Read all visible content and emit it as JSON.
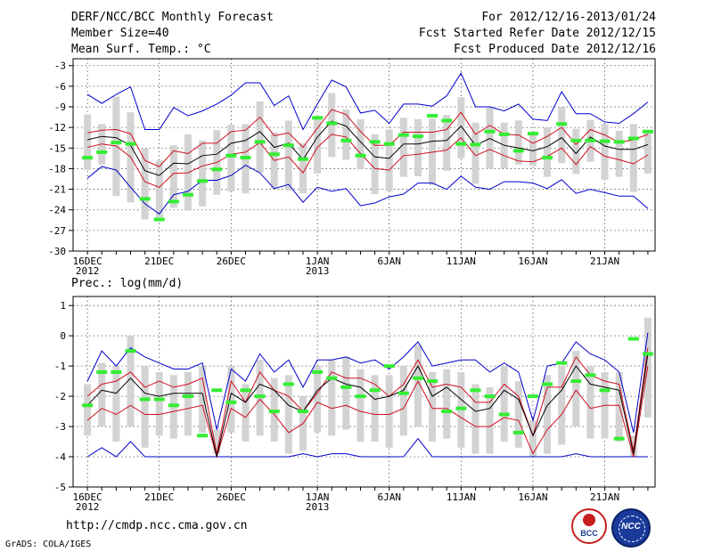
{
  "header": {
    "title": "DERF/NCC/BCC Monthly Forecast",
    "member_size": "Member Size=40",
    "variable": "Mean Surf. Temp.: °C",
    "period": "For 2012/12/16-2013/01/24",
    "fcst_started": "Fcst Started Refer Date 2012/12/15",
    "fcst_produced": "Fcst Produced Date 2012/12/16"
  },
  "footer": {
    "url": "http://cmdp.ncc.cma.gov.cn",
    "credit": "GrADS: COLA/IGES",
    "logo_left_text": "BCC",
    "logo_right_text": "NCC"
  },
  "colors": {
    "ensemble_bar": "#d3d3d3",
    "mean_line": "#000000",
    "std_line": "#d01020",
    "envelope_line": "#0000cc",
    "obs_marker": "#33ee33"
  },
  "chart_data": [
    {
      "type": "line",
      "title": "Mean Surf. Temp.: °C",
      "ylabel": "°C",
      "ylim": [
        -30,
        -2
      ],
      "yticks": [
        -3,
        -6,
        -9,
        -12,
        -15,
        -18,
        -21,
        -24,
        -27,
        -30
      ],
      "x_tick_labels": [
        "16DEC\n2012",
        "21DEC",
        "26DEC",
        "1JAN\n2013",
        "6JAN",
        "11JAN",
        "16JAN",
        "21JAN"
      ],
      "x_tick_days": [
        1,
        6,
        11,
        17,
        22,
        27,
        32,
        37
      ],
      "x_minor_count": 40,
      "grid": true,
      "series": [
        {
          "name": "ensemble max",
          "color": "#0000cc",
          "values": [
            -7.2,
            -8.5,
            -7.2,
            -6.1,
            -12.3,
            -12.3,
            -9.1,
            -10.3,
            -9.6,
            -8.6,
            -7.3,
            -5.5,
            -5.5,
            -8.8,
            -7.4,
            -12.3,
            -8.6,
            -5.1,
            -6.1,
            -9.9,
            -9.5,
            -11.4,
            -8.6,
            -8.6,
            -8.9,
            -7.4,
            -4.1,
            -9.0,
            -9.0,
            -9.6,
            -8.6,
            -10.8,
            -11.0,
            -6.8,
            -10.0,
            -10.0,
            -11.2,
            -11.4,
            -10.0,
            -8.3
          ]
        },
        {
          "name": "mean + std",
          "color": "#d01020",
          "values": [
            -12.8,
            -12.4,
            -12.3,
            -12.9,
            -16.8,
            -17.7,
            -15.4,
            -15.8,
            -14.3,
            -14.3,
            -12.6,
            -12.4,
            -10.5,
            -13.2,
            -12.8,
            -14.9,
            -12.1,
            -9.4,
            -10.1,
            -12.6,
            -14.6,
            -14.6,
            -12.7,
            -12.7,
            -12.7,
            -12.3,
            -9.8,
            -13.0,
            -11.7,
            -13.0,
            -13.1,
            -14.3,
            -13.3,
            -12.0,
            -14.5,
            -12.3,
            -13.1,
            -14.2,
            -13.8,
            -13.0,
            -12.0
          ]
        },
        {
          "name": "ensemble mean",
          "color": "#000000",
          "values": [
            -13.8,
            -13.3,
            -13.5,
            -14.6,
            -18.3,
            -19.0,
            -17.2,
            -17.3,
            -16.1,
            -15.9,
            -14.3,
            -13.9,
            -12.6,
            -14.9,
            -14.3,
            -16.7,
            -13.4,
            -11.1,
            -11.8,
            -14.1,
            -16.3,
            -16.5,
            -14.4,
            -14.4,
            -14.0,
            -13.9,
            -11.8,
            -14.6,
            -13.6,
            -14.6,
            -15.0,
            -15.4,
            -14.8,
            -13.5,
            -15.8,
            -13.4,
            -14.7,
            -15.2,
            -15.2,
            -14.5,
            -13.6
          ]
        },
        {
          "name": "mean - std",
          "color": "#d01020",
          "values": [
            -14.9,
            -14.4,
            -14.7,
            -16.3,
            -19.9,
            -20.7,
            -18.7,
            -18.6,
            -17.6,
            -17.1,
            -15.9,
            -15.6,
            -14.2,
            -16.8,
            -16.3,
            -18.6,
            -14.9,
            -13.0,
            -13.4,
            -15.8,
            -18.0,
            -18.2,
            -16.1,
            -15.9,
            -15.6,
            -15.3,
            -13.5,
            -16.1,
            -15.2,
            -16.1,
            -16.9,
            -17.0,
            -16.2,
            -15.0,
            -17.4,
            -14.8,
            -16.2,
            -16.7,
            -17.3,
            -16.0,
            -15.1
          ]
        },
        {
          "name": "ensemble min",
          "color": "#0000cc",
          "values": [
            -19.4,
            -17.7,
            -18.2,
            -20.7,
            -23.1,
            -24.6,
            -21.8,
            -21.3,
            -19.7,
            -19.7,
            -19.0,
            -17.5,
            -18.6,
            -20.9,
            -20.3,
            -22.9,
            -20.7,
            -21.3,
            -20.9,
            -23.4,
            -23.0,
            -22.1,
            -21.7,
            -20.1,
            -20.1,
            -21.0,
            -19.1,
            -20.7,
            -21.0,
            -19.9,
            -19.9,
            -20.1,
            -20.9,
            -19.6,
            -21.6,
            -21.0,
            -21.5,
            -22.0,
            -22.0,
            -23.8,
            -21.5,
            -20.9,
            -20.1
          ]
        },
        {
          "name": "observed",
          "color": "#33ee33",
          "marker": "dash",
          "values": [
            -16.4,
            -15.6,
            -14.2,
            -14.4,
            -22.4,
            -25.4,
            -22.8,
            -21.8,
            -19.8,
            -18.1,
            -16.1,
            -16.4,
            -14.1,
            -15.9,
            -14.6,
            -16.6,
            -10.6,
            -11.4,
            -13.9,
            -16.1,
            -14.1,
            -14.4,
            -13.1,
            -13.3,
            -10.3,
            -11.0,
            -14.4,
            -14.5,
            -12.6,
            -13.0,
            -15.4,
            -12.9,
            -16.4,
            -11.5,
            -13.9,
            -13.9,
            -14.0,
            -14.1,
            -13.6,
            -12.6,
            -11.2
          ]
        },
        {
          "name": "ensemble range box",
          "color": "#d3d3d3",
          "lower": [
            -18.2,
            -17.4,
            -22.0,
            -22.9,
            -25.4,
            -25.1,
            -23.7,
            -24.1,
            -23.5,
            -21.8,
            -21.3,
            -21.6,
            -18.6,
            -20.9,
            -21.2,
            -21.6,
            -18.7,
            -16.3,
            -16.7,
            -18.1,
            -21.7,
            -21.3,
            -19.2,
            -19.1,
            -20.4,
            -18.3,
            -16.5,
            -20.2,
            -18.0,
            -17.9,
            -17.4,
            -17.6,
            -19.2,
            -17.2,
            -18.8,
            -17.0,
            -19.6,
            -19.2,
            -21.4,
            -18.7,
            -17.8,
            -17.6,
            -17.9
          ],
          "upper": [
            -10.1,
            -11.5,
            -7.5,
            -9.8,
            -15.1,
            -16.8,
            -14.6,
            -13.0,
            -13.9,
            -12.4,
            -11.6,
            -11.5,
            -8.2,
            -12.7,
            -11.0,
            -14.3,
            -10.6,
            -7.0,
            -9.4,
            -10.8,
            -13.0,
            -12.3,
            -10.6,
            -10.8,
            -10.7,
            -10.2,
            -7.6,
            -11.3,
            -9.1,
            -11.3,
            -11.0,
            -12.9,
            -12.0,
            -9.0,
            -12.2,
            -10.9,
            -11.5,
            -12.5,
            -11.5,
            -12.4,
            -11.8,
            -10.0,
            -7.9
          ]
        }
      ]
    },
    {
      "type": "line",
      "title": "Prec.: log(mm/d)",
      "ylabel": "log(mm/d)",
      "ylim": [
        -5,
        1.3
      ],
      "yticks": [
        1,
        0,
        -1,
        -2,
        -3,
        -4,
        -5
      ],
      "x_tick_labels": [
        "16DEC\n2012",
        "21DEC",
        "26DEC",
        "1JAN\n2013",
        "6JAN",
        "11JAN",
        "16JAN",
        "21JAN"
      ],
      "x_tick_days": [
        1,
        6,
        11,
        17,
        22,
        27,
        32,
        37
      ],
      "x_minor_count": 40,
      "grid": true,
      "series": [
        {
          "name": "ensemble max",
          "color": "#0000cc",
          "values": [
            -1.5,
            -0.5,
            -1.0,
            -0.4,
            -0.7,
            -0.9,
            -1.1,
            -1.1,
            -0.9,
            -3.1,
            -1.1,
            -1.5,
            -0.6,
            -1.2,
            -0.8,
            -1.7,
            -0.8,
            -0.8,
            -0.7,
            -0.9,
            -0.8,
            -1.1,
            -0.7,
            -0.2,
            -1.0,
            -0.9,
            -0.8,
            -0.8,
            -1.2,
            -0.9,
            -1.2,
            -2.8,
            -1.0,
            -0.9,
            -0.2,
            -0.6,
            -0.8,
            -1.2,
            -3.2,
            0.1,
            -0.2
          ]
        },
        {
          "name": "mean + std",
          "color": "#d01020",
          "values": [
            -2.0,
            -1.6,
            -1.5,
            -1.2,
            -1.7,
            -1.5,
            -1.7,
            -1.6,
            -1.4,
            -3.9,
            -1.5,
            -2.2,
            -1.2,
            -1.8,
            -2.0,
            -2.5,
            -1.9,
            -1.2,
            -1.4,
            -1.4,
            -1.6,
            -2.0,
            -1.6,
            -0.8,
            -1.7,
            -1.6,
            -1.7,
            -2.2,
            -2.2,
            -1.6,
            -2.0,
            -3.3,
            -1.7,
            -1.7,
            -0.7,
            -1.3,
            -1.5,
            -1.6,
            -3.8,
            -0.4,
            -0.7
          ]
        },
        {
          "name": "ensemble mean",
          "color": "#000000",
          "values": [
            -2.3,
            -1.8,
            -1.9,
            -1.4,
            -1.9,
            -2.0,
            -1.9,
            -1.9,
            -1.9,
            -4.0,
            -1.9,
            -2.2,
            -1.6,
            -1.8,
            -2.3,
            -2.5,
            -1.8,
            -1.4,
            -1.6,
            -1.7,
            -2.1,
            -2.0,
            -1.8,
            -1.0,
            -2.0,
            -1.7,
            -2.1,
            -2.5,
            -2.4,
            -1.8,
            -2.1,
            -3.3,
            -2.3,
            -1.8,
            -1.0,
            -1.6,
            -1.7,
            -1.8,
            -3.9,
            -0.6,
            -1.0
          ]
        },
        {
          "name": "mean - std",
          "color": "#d01020",
          "values": [
            -2.8,
            -2.4,
            -2.6,
            -2.3,
            -2.6,
            -2.6,
            -2.5,
            -2.4,
            -2.3,
            -4.0,
            -2.4,
            -2.7,
            -2.1,
            -2.6,
            -3.2,
            -2.9,
            -2.2,
            -2.4,
            -2.3,
            -2.5,
            -2.6,
            -2.6,
            -2.4,
            -1.5,
            -2.4,
            -2.4,
            -2.7,
            -3.0,
            -3.0,
            -2.7,
            -2.8,
            -3.9,
            -3.1,
            -2.6,
            -1.8,
            -2.4,
            -2.3,
            -2.3,
            -4.0,
            -1.0,
            -1.9
          ]
        },
        {
          "name": "ensemble min",
          "color": "#0000cc",
          "values": [
            -4.0,
            -3.7,
            -4.0,
            -3.5,
            -4.0,
            -4.0,
            -4.0,
            -4.0,
            -4.0,
            -4.0,
            -4.0,
            -4.0,
            -4.0,
            -4.0,
            -4.0,
            -3.9,
            -4.0,
            -3.9,
            -3.9,
            -4.0,
            -4.0,
            -4.0,
            -4.0,
            -3.4,
            -4.0,
            -4.0,
            -4.0,
            -4.0,
            -4.0,
            -4.0,
            -4.0,
            -4.0,
            -4.0,
            -4.0,
            -3.9,
            -4.0,
            -4.0,
            -4.0,
            -4.0,
            -4.0,
            -4.0
          ]
        },
        {
          "name": "observed",
          "color": "#33ee33",
          "marker": "dash",
          "values": [
            -2.3,
            -1.2,
            -1.2,
            -0.5,
            -2.1,
            -2.1,
            -2.3,
            -2.0,
            -3.3,
            -1.8,
            -2.2,
            -1.8,
            -2.0,
            -2.5,
            -1.6,
            -2.5,
            -1.2,
            -1.4,
            -1.7,
            -2.0,
            -1.8,
            -1.0,
            -1.9,
            -1.4,
            -1.5,
            -2.5,
            -2.4,
            -1.8,
            -2.0,
            -2.6,
            -3.2,
            -2.0,
            -1.6,
            -0.9,
            -1.5,
            -1.3,
            -1.8,
            -3.4,
            -0.1,
            -0.6
          ]
        },
        {
          "name": "ensemble range box",
          "color": "#d3d3d3",
          "lower": [
            -3.3,
            -3.0,
            -3.5,
            -3.0,
            -3.7,
            -3.3,
            -3.4,
            -3.3,
            -3.2,
            -3.9,
            -3.2,
            -3.5,
            -3.3,
            -3.5,
            -3.9,
            -3.8,
            -3.2,
            -3.3,
            -3.1,
            -3.5,
            -3.5,
            -3.7,
            -3.3,
            -3.0,
            -3.5,
            -3.4,
            -3.7,
            -3.9,
            -3.9,
            -3.5,
            -3.7,
            -4.0,
            -3.9,
            -3.6,
            -3.0,
            -3.4,
            -3.4,
            -3.5,
            -4.0,
            -2.7,
            -3.0
          ],
          "upper": [
            -1.6,
            -0.9,
            -1.0,
            0.0,
            -1.0,
            -1.2,
            -1.3,
            -1.2,
            -1.0,
            -3.1,
            -1.0,
            -1.6,
            -0.8,
            -1.4,
            -1.3,
            -2.0,
            -1.0,
            -0.8,
            -0.7,
            -1.1,
            -1.3,
            -1.3,
            -1.0,
            -0.3,
            -1.2,
            -1.1,
            -1.2,
            -1.6,
            -1.7,
            -1.0,
            -1.5,
            -2.8,
            -1.3,
            -1.0,
            -0.5,
            -1.0,
            -1.2,
            -1.2,
            -3.3,
            0.6,
            0.3
          ]
        }
      ]
    }
  ]
}
